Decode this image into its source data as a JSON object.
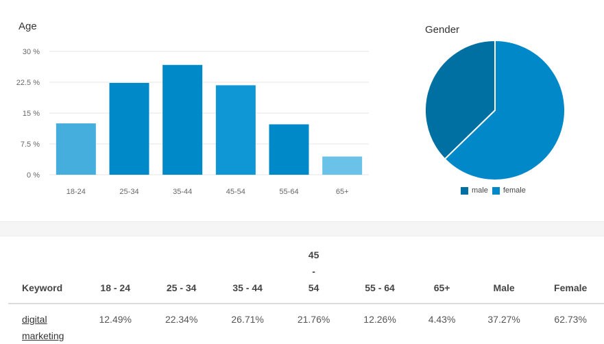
{
  "colors": {
    "grid": "#e6e6e6",
    "male": "#006fa1",
    "female": "#0088c8",
    "bars": [
      "#45aedd",
      "#0089c9",
      "#0089c9",
      "#0e96d5",
      "#0089c9",
      "#6bc2e8"
    ]
  },
  "chart_data": [
    {
      "type": "bar",
      "title": "Age",
      "categories": [
        "18-24",
        "25-34",
        "35-44",
        "45-54",
        "55-64",
        "65+"
      ],
      "values": [
        12.49,
        22.34,
        26.71,
        21.76,
        12.26,
        4.43
      ],
      "yticks": [
        "0 %",
        "7.5 %",
        "15 %",
        "22.5 %",
        "30 %"
      ],
      "ytick_values": [
        0,
        7.5,
        15,
        22.5,
        30
      ],
      "ylim": [
        0,
        30
      ],
      "xlabel": "",
      "ylabel": "",
      "grid": true
    },
    {
      "type": "pie",
      "title": "Gender",
      "labels": [
        "male",
        "female"
      ],
      "values": [
        37.27,
        62.73
      ],
      "legend": "bottom"
    }
  ],
  "table": {
    "headers": [
      "Keyword",
      "18 - 24",
      "25 - 34",
      "35 - 44",
      "45 - 54",
      "55 - 64",
      "65+",
      "Male",
      "Female"
    ],
    "rows": [
      {
        "keyword": "digital marketing",
        "cells": [
          "12.49%",
          "22.34%",
          "26.71%",
          "21.76%",
          "12.26%",
          "4.43%",
          "37.27%",
          "62.73%"
        ]
      }
    ]
  }
}
